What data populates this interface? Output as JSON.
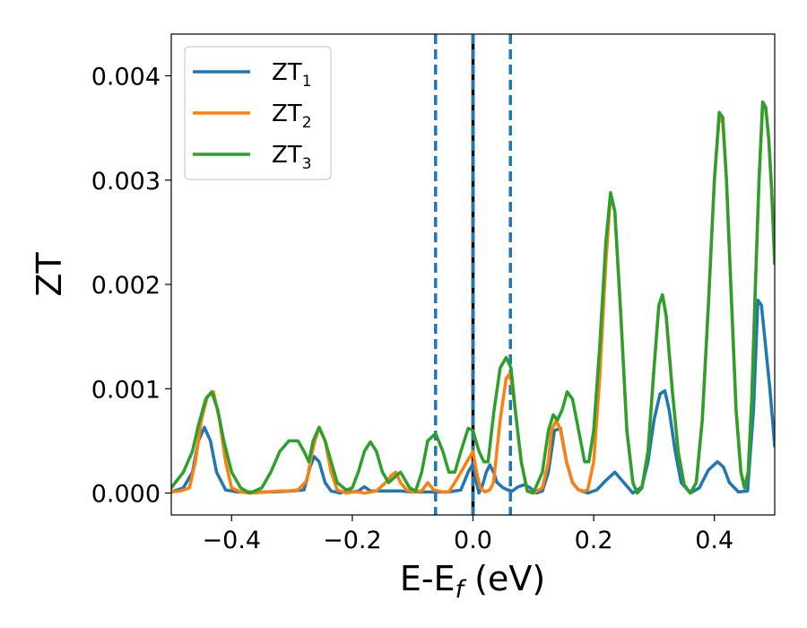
{
  "chart_data": {
    "type": "line",
    "xlabel": "E-E",
    "xlabel_subscript": "f",
    "xlabel_unit": " (eV)",
    "ylabel": "ZT",
    "xlim": [
      -0.5,
      0.5
    ],
    "ylim": [
      -0.00021,
      0.0044
    ],
    "xticks": [
      -0.4,
      -0.2,
      0.0,
      0.2,
      0.4
    ],
    "xtick_labels": [
      "−0.4",
      "−0.2",
      "0.0",
      "0.2",
      "0.4"
    ],
    "yticks": [
      0.0,
      0.001,
      0.002,
      0.003,
      0.004
    ],
    "ytick_labels": [
      "0.000",
      "0.001",
      "0.002",
      "0.003",
      "0.004"
    ],
    "grid": false,
    "legend_position": "top-left",
    "vlines": [
      {
        "x": -0.062,
        "style": "dashed",
        "color": "#1f77b4"
      },
      {
        "x": 0.0,
        "style": "solid",
        "color": "#000000"
      },
      {
        "x": 0.0,
        "style": "dashed",
        "color": "#1f77b4"
      },
      {
        "x": 0.062,
        "style": "dashed",
        "color": "#1f77b4"
      }
    ],
    "series": [
      {
        "name": "ZT",
        "subscript": "1",
        "color": "#1f77b4",
        "points": [
          [
            -0.5,
            1e-05
          ],
          [
            -0.48,
            5e-05
          ],
          [
            -0.465,
            0.0002
          ],
          [
            -0.455,
            0.0005
          ],
          [
            -0.445,
            0.00063
          ],
          [
            -0.435,
            0.0005
          ],
          [
            -0.425,
            0.0002
          ],
          [
            -0.41,
            3e-05
          ],
          [
            -0.39,
            1e-05
          ],
          [
            -0.33,
            1e-05
          ],
          [
            -0.3,
            2e-05
          ],
          [
            -0.28,
            3e-05
          ],
          [
            -0.27,
            0.00025
          ],
          [
            -0.263,
            0.00035
          ],
          [
            -0.255,
            0.0003
          ],
          [
            -0.245,
            0.0001
          ],
          [
            -0.235,
            2e-05
          ],
          [
            -0.22,
            0.0
          ],
          [
            -0.205,
            3e-05
          ],
          [
            -0.2,
            1e-05
          ],
          [
            -0.19,
            2e-05
          ],
          [
            -0.18,
            6e-05
          ],
          [
            -0.17,
            2e-05
          ],
          [
            -0.14,
            2e-05
          ],
          [
            -0.12,
            2e-05
          ],
          [
            -0.1,
            1e-05
          ],
          [
            -0.08,
            1e-05
          ],
          [
            -0.06,
            1e-05
          ],
          [
            -0.04,
            1e-05
          ],
          [
            -0.02,
            3e-05
          ],
          [
            -0.008,
            0.0002
          ],
          [
            0.0,
            0.00028
          ],
          [
            0.006,
            0.0001
          ],
          [
            0.01,
            0.0
          ],
          [
            0.016,
            8e-05
          ],
          [
            0.022,
            0.0002
          ],
          [
            0.028,
            0.00027
          ],
          [
            0.034,
            0.0002
          ],
          [
            0.04,
            0.0001
          ],
          [
            0.05,
            5e-05
          ],
          [
            0.058,
            3e-05
          ],
          [
            0.065,
            2e-05
          ],
          [
            0.075,
            6e-05
          ],
          [
            0.085,
            8e-05
          ],
          [
            0.095,
            5e-05
          ],
          [
            0.105,
            0.0
          ],
          [
            0.115,
            2e-05
          ],
          [
            0.125,
            0.0002
          ],
          [
            0.135,
            0.0006
          ],
          [
            0.145,
            0.00062
          ],
          [
            0.155,
            0.0003
          ],
          [
            0.165,
            0.0001
          ],
          [
            0.175,
            3e-05
          ],
          [
            0.19,
            0.0
          ],
          [
            0.205,
            3e-05
          ],
          [
            0.22,
            0.00012
          ],
          [
            0.235,
            0.0002
          ],
          [
            0.25,
            0.0001
          ],
          [
            0.265,
            0.0
          ],
          [
            0.28,
            6e-05
          ],
          [
            0.29,
            0.0003
          ],
          [
            0.3,
            0.0007
          ],
          [
            0.31,
            0.00095
          ],
          [
            0.318,
            0.00098
          ],
          [
            0.325,
            0.0008
          ],
          [
            0.335,
            0.0004
          ],
          [
            0.345,
            0.0001
          ],
          [
            0.36,
            0.0
          ],
          [
            0.375,
            5e-05
          ],
          [
            0.39,
            0.00022
          ],
          [
            0.405,
            0.0003
          ],
          [
            0.415,
            0.00025
          ],
          [
            0.425,
            0.0001
          ],
          [
            0.44,
            1e-05
          ],
          [
            0.455,
            2e-05
          ],
          [
            0.465,
            0.0008
          ],
          [
            0.472,
            0.00185
          ],
          [
            0.478,
            0.0018
          ],
          [
            0.485,
            0.0014
          ],
          [
            0.492,
            0.001
          ],
          [
            0.5,
            0.00045
          ]
        ]
      },
      {
        "name": "ZT",
        "subscript": "2",
        "color": "#ff7f0e",
        "points": [
          [
            -0.5,
            1e-05
          ],
          [
            -0.485,
            2e-05
          ],
          [
            -0.47,
            5e-05
          ],
          [
            -0.46,
            0.0003
          ],
          [
            -0.45,
            0.0007
          ],
          [
            -0.44,
            0.00093
          ],
          [
            -0.43,
            0.00097
          ],
          [
            -0.42,
            0.0007
          ],
          [
            -0.41,
            0.0003
          ],
          [
            -0.4,
            5e-05
          ],
          [
            -0.385,
            1e-05
          ],
          [
            -0.37,
            0.0
          ],
          [
            -0.34,
            1e-05
          ],
          [
            -0.32,
            2e-05
          ],
          [
            -0.305,
            2e-05
          ],
          [
            -0.29,
            3e-05
          ],
          [
            -0.275,
            0.00012
          ],
          [
            -0.268,
            0.00035
          ],
          [
            -0.262,
            0.0005
          ],
          [
            -0.255,
            0.00063
          ],
          [
            -0.245,
            0.0005
          ],
          [
            -0.235,
            0.0002
          ],
          [
            -0.225,
            3e-05
          ],
          [
            -0.21,
            0.0
          ],
          [
            -0.2,
            1e-05
          ],
          [
            -0.19,
            1e-05
          ],
          [
            -0.18,
            0.0
          ],
          [
            -0.16,
            2e-05
          ],
          [
            -0.145,
            0.0001
          ],
          [
            -0.135,
            0.00017
          ],
          [
            -0.128,
            0.0002
          ],
          [
            -0.12,
            0.0001
          ],
          [
            -0.11,
            3e-05
          ],
          [
            -0.1,
            1e-05
          ],
          [
            -0.085,
            2e-05
          ],
          [
            -0.075,
            0.0001
          ],
          [
            -0.065,
            3e-05
          ],
          [
            -0.05,
            1e-05
          ],
          [
            -0.04,
            1e-05
          ],
          [
            -0.025,
            0.00015
          ],
          [
            -0.015,
            0.00025
          ],
          [
            -0.005,
            0.00035
          ],
          [
            0.0,
            0.0004
          ],
          [
            0.006,
            0.0002
          ],
          [
            0.012,
            5e-05
          ],
          [
            0.02,
            1e-05
          ],
          [
            0.028,
            3e-05
          ],
          [
            0.034,
            0.0001
          ],
          [
            0.045,
            0.0007
          ],
          [
            0.055,
            0.0011
          ],
          [
            0.062,
            0.00115
          ],
          [
            0.07,
            0.0008
          ],
          [
            0.08,
            0.0003
          ],
          [
            0.09,
            2e-05
          ],
          [
            0.1,
            0.0
          ],
          [
            0.115,
            5e-05
          ],
          [
            0.125,
            0.0003
          ],
          [
            0.13,
            0.0006
          ],
          [
            0.138,
            0.0007
          ],
          [
            0.145,
            0.0006
          ],
          [
            0.155,
            0.0003
          ],
          [
            0.165,
            0.0001
          ],
          [
            0.175,
            3e-05
          ],
          [
            0.185,
            2e-05
          ],
          [
            0.19,
            3e-05
          ],
          [
            0.2,
            0.0003
          ],
          [
            0.21,
            0.0011
          ],
          [
            0.22,
            0.0022
          ],
          [
            0.228,
            0.00285
          ],
          [
            0.235,
            0.0027
          ],
          [
            0.245,
            0.0017
          ],
          [
            0.255,
            0.0006
          ],
          [
            0.265,
            0.0001
          ],
          [
            0.272,
            0.0
          ],
          [
            0.28,
            5e-05
          ],
          [
            0.29,
            0.0004
          ],
          [
            0.3,
            0.0012
          ],
          [
            0.308,
            0.0018
          ],
          [
            0.314,
            0.0019
          ],
          [
            0.32,
            0.0017
          ],
          [
            0.33,
            0.001
          ],
          [
            0.34,
            0.0004
          ],
          [
            0.35,
            8e-05
          ],
          [
            0.36,
            0.0
          ],
          [
            0.37,
            0.0001
          ],
          [
            0.38,
            0.0007
          ],
          [
            0.39,
            0.0018
          ],
          [
            0.4,
            0.003
          ],
          [
            0.408,
            0.0036
          ],
          [
            0.414,
            0.00355
          ],
          [
            0.42,
            0.003
          ],
          [
            0.428,
            0.0019
          ],
          [
            0.436,
            0.0008
          ],
          [
            0.444,
            0.0002
          ],
          [
            0.45,
            5e-05
          ],
          [
            0.456,
            0.0002
          ],
          [
            0.462,
            0.0009
          ],
          [
            0.468,
            0.002
          ],
          [
            0.474,
            0.003
          ],
          [
            0.48,
            0.0037
          ],
          [
            0.485,
            0.0037
          ],
          [
            0.49,
            0.0034
          ],
          [
            0.495,
            0.0029
          ],
          [
            0.5,
            0.0022
          ]
        ]
      },
      {
        "name": "ZT",
        "subscript": "3",
        "color": "#2ca02c",
        "points": [
          [
            -0.5,
            5e-05
          ],
          [
            -0.48,
            0.0002
          ],
          [
            -0.465,
            0.0004
          ],
          [
            -0.455,
            0.00065
          ],
          [
            -0.443,
            0.0009
          ],
          [
            -0.433,
            0.00097
          ],
          [
            -0.423,
            0.0008
          ],
          [
            -0.413,
            0.0005
          ],
          [
            -0.4,
            0.0002
          ],
          [
            -0.385,
            5e-05
          ],
          [
            -0.37,
            0.0
          ],
          [
            -0.35,
            5e-05
          ],
          [
            -0.335,
            0.0002
          ],
          [
            -0.32,
            0.0004
          ],
          [
            -0.305,
            0.0005
          ],
          [
            -0.29,
            0.0005
          ],
          [
            -0.28,
            0.0004
          ],
          [
            -0.272,
            0.0003
          ],
          [
            -0.265,
            0.0005
          ],
          [
            -0.255,
            0.00063
          ],
          [
            -0.245,
            0.0005
          ],
          [
            -0.235,
            0.0003
          ],
          [
            -0.225,
            0.0001
          ],
          [
            -0.21,
            3e-05
          ],
          [
            -0.2,
            5e-05
          ],
          [
            -0.19,
            0.0002
          ],
          [
            -0.18,
            0.0004
          ],
          [
            -0.17,
            0.00049
          ],
          [
            -0.16,
            0.0004
          ],
          [
            -0.15,
            0.0002
          ],
          [
            -0.14,
            0.0001
          ],
          [
            -0.13,
            0.00015
          ],
          [
            -0.12,
            0.0002
          ],
          [
            -0.105,
            5e-05
          ],
          [
            -0.095,
            2e-05
          ],
          [
            -0.085,
            0.0002
          ],
          [
            -0.075,
            0.0005
          ],
          [
            -0.062,
            0.00057
          ],
          [
            -0.05,
            0.0004
          ],
          [
            -0.04,
            0.0002
          ],
          [
            -0.03,
            0.0002
          ],
          [
            -0.02,
            0.0004
          ],
          [
            -0.008,
            0.00062
          ],
          [
            0.0,
            0.0006
          ],
          [
            0.01,
            0.0004
          ],
          [
            0.018,
            0.0003
          ],
          [
            0.025,
            0.0003
          ],
          [
            0.035,
            0.0008
          ],
          [
            0.045,
            0.0012
          ],
          [
            0.055,
            0.0013
          ],
          [
            0.063,
            0.0012
          ],
          [
            0.07,
            0.0008
          ],
          [
            0.08,
            0.0003
          ],
          [
            0.09,
            2e-05
          ],
          [
            0.1,
            0.0
          ],
          [
            0.115,
            0.0002
          ],
          [
            0.125,
            0.0006
          ],
          [
            0.133,
            0.00075
          ],
          [
            0.14,
            0.0007
          ],
          [
            0.148,
            0.0008
          ],
          [
            0.156,
            0.00097
          ],
          [
            0.165,
            0.0009
          ],
          [
            0.175,
            0.0006
          ],
          [
            0.185,
            0.0003
          ],
          [
            0.192,
            0.0003
          ],
          [
            0.2,
            0.0006
          ],
          [
            0.21,
            0.0014
          ],
          [
            0.22,
            0.0024
          ],
          [
            0.228,
            0.00288
          ],
          [
            0.235,
            0.0027
          ],
          [
            0.245,
            0.0017
          ],
          [
            0.255,
            0.0006
          ],
          [
            0.265,
            0.0001
          ],
          [
            0.272,
            0.0
          ],
          [
            0.28,
            5e-05
          ],
          [
            0.29,
            0.0004
          ],
          [
            0.3,
            0.0012
          ],
          [
            0.308,
            0.0018
          ],
          [
            0.314,
            0.0019
          ],
          [
            0.32,
            0.0017
          ],
          [
            0.33,
            0.001
          ],
          [
            0.34,
            0.0004
          ],
          [
            0.35,
            8e-05
          ],
          [
            0.36,
            0.0
          ],
          [
            0.37,
            0.0001
          ],
          [
            0.38,
            0.0007
          ],
          [
            0.39,
            0.0018
          ],
          [
            0.4,
            0.003
          ],
          [
            0.408,
            0.00365
          ],
          [
            0.414,
            0.0036
          ],
          [
            0.42,
            0.003
          ],
          [
            0.428,
            0.0019
          ],
          [
            0.436,
            0.0008
          ],
          [
            0.444,
            0.0002
          ],
          [
            0.45,
            5e-05
          ],
          [
            0.456,
            0.0002
          ],
          [
            0.462,
            0.0009
          ],
          [
            0.468,
            0.002
          ],
          [
            0.474,
            0.003
          ],
          [
            0.48,
            0.00375
          ],
          [
            0.485,
            0.0037
          ],
          [
            0.49,
            0.0034
          ],
          [
            0.495,
            0.0029
          ],
          [
            0.5,
            0.0022
          ]
        ]
      }
    ]
  }
}
